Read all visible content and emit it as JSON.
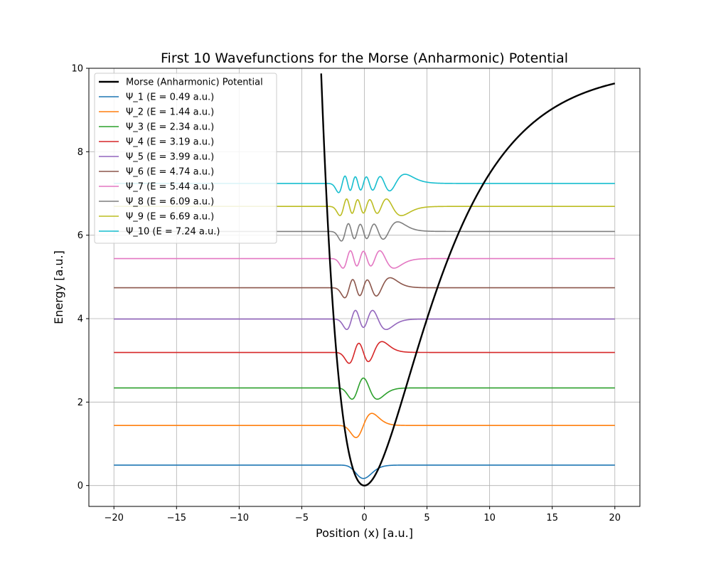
{
  "chart_data": {
    "type": "line",
    "title": "First 10 Wavefunctions for the Morse (Anharmonic) Potential",
    "xlabel": "Position (x) [a.u.]",
    "ylabel": "Energy [a.u.]",
    "xlim": [
      -22,
      22
    ],
    "ylim": [
      -0.5,
      10
    ],
    "xticks": [
      -20,
      -15,
      -10,
      -5,
      0,
      5,
      10,
      15,
      20
    ],
    "xtick_labels": [
      "−20",
      "−15",
      "−10",
      "−5",
      "0",
      "5",
      "10",
      "15",
      "20"
    ],
    "yticks": [
      0,
      2,
      4,
      6,
      8,
      10
    ],
    "ytick_labels": [
      "0",
      "2",
      "4",
      "6",
      "8",
      "10"
    ],
    "grid": true,
    "legend_position": "top-left",
    "potential": {
      "name": "Morse (Anharmonic) Potential",
      "color": "#000000",
      "depth": 10,
      "a": 0.2,
      "x_range": [
        -20,
        20
      ]
    },
    "series": [
      {
        "name": "Ψ_1 (E = 0.49 a.u.)",
        "energy": 0.49,
        "color": "#1f77b4",
        "amplitude": 0.32
      },
      {
        "name": "Ψ_2 (E = 1.44 a.u.)",
        "energy": 1.44,
        "color": "#ff7f0e",
        "amplitude": 0.29
      },
      {
        "name": "Ψ_3 (E = 2.34 a.u.)",
        "energy": 2.34,
        "color": "#2ca02c",
        "amplitude": 0.27
      },
      {
        "name": "Ψ_4 (E = 3.19 a.u.)",
        "energy": 3.19,
        "color": "#d62728",
        "amplitude": 0.26
      },
      {
        "name": "Ψ_5 (E = 3.99 a.u.)",
        "energy": 3.99,
        "color": "#9467bd",
        "amplitude": 0.25
      },
      {
        "name": "Ψ_6 (E = 4.74 a.u.)",
        "energy": 4.74,
        "color": "#8c564b",
        "amplitude": 0.24
      },
      {
        "name": "Ψ_7 (E = 5.44 a.u.)",
        "energy": 5.44,
        "color": "#e377c2",
        "amplitude": 0.23
      },
      {
        "name": "Ψ_8 (E = 6.09 a.u.)",
        "energy": 6.09,
        "color": "#7f7f7f",
        "amplitude": 0.23
      },
      {
        "name": "Ψ_9 (E = 6.69 a.u.)",
        "energy": 6.69,
        "color": "#bcbd22",
        "amplitude": 0.22
      },
      {
        "name": "Ψ_10 (E = 7.24 a.u.)",
        "energy": 7.24,
        "color": "#17becf",
        "amplitude": 0.22
      }
    ]
  }
}
